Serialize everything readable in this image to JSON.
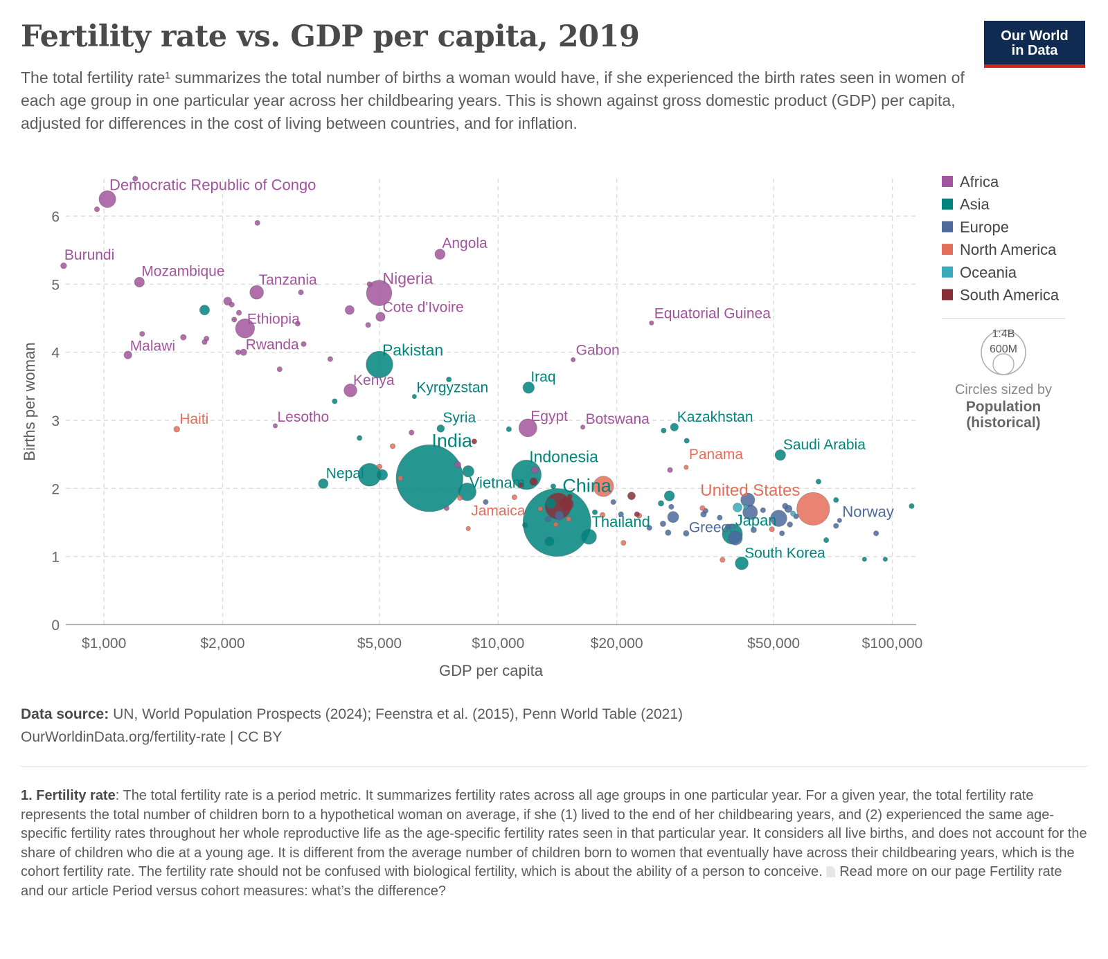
{
  "header": {
    "title": "Fertility rate vs. GDP per capita, 2019",
    "subtitle": "The total fertility rate¹ summarizes the total number of births a woman would have, if she experienced the birth rates seen in women of each age group in one particular year across her childbearing years. This is shown against gross domestic product (GDP) per capita, adjusted for differences in the cost of living between countries, and for inflation.",
    "logo_line1": "Our World",
    "logo_line2": "in Data"
  },
  "colors": {
    "Africa": "#a2559c",
    "Asia": "#00847e",
    "Europe": "#4c6a9c",
    "North America": "#e56e5a",
    "Oceania": "#38aaba",
    "South America": "#883039"
  },
  "chart_data": {
    "type": "scatter",
    "x_scale": "log",
    "xlabel": "GDP per capita",
    "ylabel": "Births per woman",
    "xlim": [
      800,
      115000
    ],
    "ylim": [
      0,
      6.55
    ],
    "x_ticks": [
      1000,
      2000,
      5000,
      10000,
      20000,
      50000,
      100000
    ],
    "x_tick_labels": [
      "$1,000",
      "$2,000",
      "$5,000",
      "$10,000",
      "$20,000",
      "$50,000",
      "$100,000"
    ],
    "y_ticks": [
      0,
      1,
      2,
      3,
      4,
      5,
      6
    ],
    "y_tick_labels": [
      "0",
      "1",
      "2",
      "3",
      "4",
      "5",
      "6"
    ],
    "grid": true,
    "legend_position": "right",
    "size_legend": {
      "values": [
        "1:4B",
        "600M"
      ],
      "caption1": "Circles sized by",
      "caption2": "Population",
      "caption3": "(historical)"
    },
    "series": [
      {
        "name": "Africa",
        "points": [
          {
            "label": "Democratic Republic of Congo",
            "x": 1020,
            "y": 6.25,
            "pop": 87
          },
          {
            "label": "Burundi",
            "x": 790,
            "y": 5.27,
            "pop": 11
          },
          {
            "label": "Mozambique",
            "x": 1230,
            "y": 5.03,
            "pop": 30
          },
          {
            "label": "Tanzania",
            "x": 2440,
            "y": 4.88,
            "pop": 58
          },
          {
            "label": "Nigeria",
            "x": 4990,
            "y": 4.87,
            "pop": 200
          },
          {
            "label": "Angola",
            "x": 7120,
            "y": 5.44,
            "pop": 32
          },
          {
            "label": "Ethiopia",
            "x": 2280,
            "y": 4.35,
            "pop": 112
          },
          {
            "label": "Cote d'Ivoire",
            "x": 5030,
            "y": 4.52,
            "pop": 26
          },
          {
            "label": "Malawi",
            "x": 1150,
            "y": 3.96,
            "pop": 19
          },
          {
            "label": "Rwanda",
            "x": 2260,
            "y": 4.0,
            "pop": 13
          },
          {
            "label": "Kenya",
            "x": 4220,
            "y": 3.44,
            "pop": 52
          },
          {
            "label": "Lesotho",
            "x": 2720,
            "y": 2.92,
            "pop": 2
          },
          {
            "label": "Egypt",
            "x": 11900,
            "y": 2.89,
            "pop": 100
          },
          {
            "label": "Botswana",
            "x": 16400,
            "y": 2.9,
            "pop": 2
          },
          {
            "label": "Gabon",
            "x": 15500,
            "y": 3.89,
            "pop": 2
          },
          {
            "label": "Equatorial Guinea",
            "x": 24500,
            "y": 4.43,
            "pop": 1
          },
          {
            "label": "",
            "x": 1200,
            "y": 6.55,
            "pop": 8
          },
          {
            "label": "",
            "x": 960,
            "y": 6.1,
            "pop": 8
          },
          {
            "label": "",
            "x": 2450,
            "y": 5.9,
            "pop": 8
          },
          {
            "label": "",
            "x": 4720,
            "y": 5.0,
            "pop": 8
          },
          {
            "label": "",
            "x": 2060,
            "y": 4.75,
            "pop": 20
          },
          {
            "label": "",
            "x": 2110,
            "y": 4.7,
            "pop": 8
          },
          {
            "label": "",
            "x": 2200,
            "y": 4.58,
            "pop": 8
          },
          {
            "label": "",
            "x": 2140,
            "y": 4.48,
            "pop": 8
          },
          {
            "label": "",
            "x": 4200,
            "y": 4.62,
            "pop": 25
          },
          {
            "label": "",
            "x": 1250,
            "y": 4.27,
            "pop": 8
          },
          {
            "label": "",
            "x": 1590,
            "y": 4.22,
            "pop": 10
          },
          {
            "label": "",
            "x": 1820,
            "y": 4.2,
            "pop": 8
          },
          {
            "label": "",
            "x": 1800,
            "y": 4.15,
            "pop": 8
          },
          {
            "label": "",
            "x": 3100,
            "y": 4.42,
            "pop": 8
          },
          {
            "label": "",
            "x": 3160,
            "y": 4.88,
            "pop": 8
          },
          {
            "label": "",
            "x": 3210,
            "y": 4.12,
            "pop": 8
          },
          {
            "label": "",
            "x": 4680,
            "y": 4.4,
            "pop": 8
          },
          {
            "label": "",
            "x": 3750,
            "y": 3.9,
            "pop": 8
          },
          {
            "label": "",
            "x": 2790,
            "y": 3.75,
            "pop": 8
          },
          {
            "label": "",
            "x": 2190,
            "y": 4.0,
            "pop": 8
          },
          {
            "label": "",
            "x": 6030,
            "y": 2.82,
            "pop": 8
          },
          {
            "label": "",
            "x": 7900,
            "y": 2.35,
            "pop": 12
          },
          {
            "label": "",
            "x": 12400,
            "y": 2.27,
            "pop": 15
          },
          {
            "label": "",
            "x": 7400,
            "y": 1.71,
            "pop": 8
          },
          {
            "label": "",
            "x": 27300,
            "y": 2.27,
            "pop": 8
          }
        ]
      },
      {
        "name": "Asia",
        "points": [
          {
            "label": "India",
            "x": 6700,
            "y": 2.15,
            "pop": 1380
          },
          {
            "label": "China",
            "x": 14100,
            "y": 1.5,
            "pop": 1420
          },
          {
            "label": "Indonesia",
            "x": 11800,
            "y": 2.2,
            "pop": 270
          },
          {
            "label": "Pakistan",
            "x": 5000,
            "y": 3.82,
            "pop": 220
          },
          {
            "label": "Kyrgyzstan",
            "x": 6130,
            "y": 3.35,
            "pop": 6
          },
          {
            "label": "Iraq",
            "x": 11950,
            "y": 3.48,
            "pop": 40
          },
          {
            "label": "Syria",
            "x": 7150,
            "y": 2.88,
            "pop": 17
          },
          {
            "label": "Nepal",
            "x": 3600,
            "y": 2.07,
            "pop": 29
          },
          {
            "label": "Vietnam",
            "x": 8350,
            "y": 1.95,
            "pop": 97
          },
          {
            "label": "Thailand",
            "x": 17000,
            "y": 1.29,
            "pop": 70
          },
          {
            "label": "Japan",
            "x": 39300,
            "y": 1.33,
            "pop": 126
          },
          {
            "label": "South Korea",
            "x": 41500,
            "y": 0.9,
            "pop": 52
          },
          {
            "label": "Kazakhstan",
            "x": 28000,
            "y": 2.9,
            "pop": 19
          },
          {
            "label": "Saudi Arabia",
            "x": 52000,
            "y": 2.49,
            "pop": 35
          },
          {
            "label": "",
            "x": 1800,
            "y": 4.62,
            "pop": 30
          },
          {
            "label": "",
            "x": 3850,
            "y": 3.28,
            "pop": 8
          },
          {
            "label": "",
            "x": 4450,
            "y": 2.74,
            "pop": 8
          },
          {
            "label": "",
            "x": 4720,
            "y": 2.2,
            "pop": 160
          },
          {
            "label": "",
            "x": 5080,
            "y": 2.2,
            "pop": 35
          },
          {
            "label": "",
            "x": 7500,
            "y": 3.6,
            "pop": 8
          },
          {
            "label": "",
            "x": 8400,
            "y": 2.25,
            "pop": 40
          },
          {
            "label": "",
            "x": 10650,
            "y": 2.87,
            "pop": 8
          },
          {
            "label": "",
            "x": 13600,
            "y": 1.78,
            "pop": 30
          },
          {
            "label": "",
            "x": 13800,
            "y": 2.03,
            "pop": 8
          },
          {
            "label": "",
            "x": 11700,
            "y": 1.46,
            "pop": 8
          },
          {
            "label": "",
            "x": 13500,
            "y": 1.22,
            "pop": 25
          },
          {
            "label": "",
            "x": 17600,
            "y": 1.65,
            "pop": 8
          },
          {
            "label": "",
            "x": 25900,
            "y": 1.78,
            "pop": 10
          },
          {
            "label": "",
            "x": 26300,
            "y": 2.85,
            "pop": 8
          },
          {
            "label": "",
            "x": 27200,
            "y": 1.89,
            "pop": 32
          },
          {
            "label": "",
            "x": 30100,
            "y": 2.7,
            "pop": 8
          },
          {
            "label": "",
            "x": 65000,
            "y": 2.1,
            "pop": 8
          },
          {
            "label": "",
            "x": 72000,
            "y": 1.83,
            "pop": 8
          },
          {
            "label": "",
            "x": 68000,
            "y": 1.24,
            "pop": 8
          },
          {
            "label": "",
            "x": 85000,
            "y": 0.96,
            "pop": 6
          },
          {
            "label": "",
            "x": 96000,
            "y": 0.96,
            "pop": 6
          },
          {
            "label": "",
            "x": 112000,
            "y": 1.74,
            "pop": 8
          }
        ]
      },
      {
        "name": "Europe",
        "points": [
          {
            "label": "Greece",
            "x": 30000,
            "y": 1.34,
            "pop": 10
          },
          {
            "label": "Norway",
            "x": 73500,
            "y": 1.53,
            "pop": 5
          },
          {
            "label": "",
            "x": 9300,
            "y": 1.8,
            "pop": 8
          },
          {
            "label": "",
            "x": 13400,
            "y": 1.55,
            "pop": 10
          },
          {
            "label": "",
            "x": 14300,
            "y": 1.6,
            "pop": 25
          },
          {
            "label": "",
            "x": 19600,
            "y": 1.8,
            "pop": 8
          },
          {
            "label": "",
            "x": 20500,
            "y": 1.62,
            "pop": 8
          },
          {
            "label": "",
            "x": 24200,
            "y": 1.42,
            "pop": 8
          },
          {
            "label": "",
            "x": 26200,
            "y": 1.48,
            "pop": 10
          },
          {
            "label": "",
            "x": 27000,
            "y": 1.35,
            "pop": 10
          },
          {
            "label": "",
            "x": 27500,
            "y": 1.73,
            "pop": 8
          },
          {
            "label": "",
            "x": 27800,
            "y": 1.58,
            "pop": 38
          },
          {
            "label": "",
            "x": 33200,
            "y": 1.62,
            "pop": 10
          },
          {
            "label": "",
            "x": 33600,
            "y": 1.67,
            "pop": 8
          },
          {
            "label": "",
            "x": 36500,
            "y": 1.57,
            "pop": 8
          },
          {
            "label": "",
            "x": 38300,
            "y": 1.44,
            "pop": 8
          },
          {
            "label": "",
            "x": 40000,
            "y": 1.27,
            "pop": 60
          },
          {
            "label": "",
            "x": 43000,
            "y": 1.83,
            "pop": 60
          },
          {
            "label": "",
            "x": 43600,
            "y": 1.65,
            "pop": 67
          },
          {
            "label": "",
            "x": 44500,
            "y": 1.39,
            "pop": 10
          },
          {
            "label": "",
            "x": 47000,
            "y": 1.68,
            "pop": 8
          },
          {
            "label": "",
            "x": 51500,
            "y": 1.56,
            "pop": 83
          },
          {
            "label": "",
            "x": 53500,
            "y": 1.74,
            "pop": 10
          },
          {
            "label": "",
            "x": 54500,
            "y": 1.7,
            "pop": 17
          },
          {
            "label": "",
            "x": 57000,
            "y": 1.59,
            "pop": 8
          },
          {
            "label": "",
            "x": 55000,
            "y": 1.47,
            "pop": 9
          },
          {
            "label": "",
            "x": 52500,
            "y": 1.34,
            "pop": 8
          },
          {
            "label": "",
            "x": 72000,
            "y": 1.45,
            "pop": 8
          },
          {
            "label": "",
            "x": 91000,
            "y": 1.34,
            "pop": 8
          }
        ]
      },
      {
        "name": "North America",
        "points": [
          {
            "label": "United States",
            "x": 63000,
            "y": 1.7,
            "pop": 330
          },
          {
            "label": "Haiti",
            "x": 1530,
            "y": 2.87,
            "pop": 11
          },
          {
            "label": "Jamaica",
            "x": 8400,
            "y": 1.41,
            "pop": 3
          },
          {
            "label": "Panama",
            "x": 30000,
            "y": 2.31,
            "pop": 4
          },
          {
            "label": "",
            "x": 5000,
            "y": 2.32,
            "pop": 8
          },
          {
            "label": "",
            "x": 5400,
            "y": 2.62,
            "pop": 8
          },
          {
            "label": "",
            "x": 5650,
            "y": 2.15,
            "pop": 8
          },
          {
            "label": "",
            "x": 8000,
            "y": 1.86,
            "pop": 8
          },
          {
            "label": "",
            "x": 11000,
            "y": 1.87,
            "pop": 8
          },
          {
            "label": "",
            "x": 12800,
            "y": 1.7,
            "pop": 8
          },
          {
            "label": "",
            "x": 14000,
            "y": 1.47,
            "pop": 8
          },
          {
            "label": "",
            "x": 15100,
            "y": 1.55,
            "pop": 8
          },
          {
            "label": "",
            "x": 18400,
            "y": 1.61,
            "pop": 8
          },
          {
            "label": "",
            "x": 18500,
            "y": 2.03,
            "pop": 128
          },
          {
            "label": "",
            "x": 20800,
            "y": 1.2,
            "pop": 8
          },
          {
            "label": "",
            "x": 22800,
            "y": 1.6,
            "pop": 8
          },
          {
            "label": "",
            "x": 33000,
            "y": 1.71,
            "pop": 8
          },
          {
            "label": "",
            "x": 37100,
            "y": 0.95,
            "pop": 8
          },
          {
            "label": "",
            "x": 49500,
            "y": 1.4,
            "pop": 8
          }
        ]
      },
      {
        "name": "Oceania",
        "points": [
          {
            "label": "",
            "x": 40500,
            "y": 1.72,
            "pop": 25
          },
          {
            "label": "",
            "x": 42500,
            "y": 1.73,
            "pop": 5
          },
          {
            "label": "",
            "x": 56000,
            "y": 1.63,
            "pop": 8
          }
        ]
      },
      {
        "name": "South America",
        "points": [
          {
            "label": "",
            "x": 8700,
            "y": 2.69,
            "pop": 8
          },
          {
            "label": "",
            "x": 11400,
            "y": 2.05,
            "pop": 8
          },
          {
            "label": "",
            "x": 12300,
            "y": 2.1,
            "pop": 18
          },
          {
            "label": "",
            "x": 14200,
            "y": 1.74,
            "pop": 211
          },
          {
            "label": "",
            "x": 14900,
            "y": 1.77,
            "pop": 60
          },
          {
            "label": "",
            "x": 15200,
            "y": 1.88,
            "pop": 8
          },
          {
            "label": "",
            "x": 21800,
            "y": 1.89,
            "pop": 18
          },
          {
            "label": "",
            "x": 22500,
            "y": 1.62,
            "pop": 8
          }
        ]
      }
    ]
  },
  "source": {
    "label": "Data source:",
    "text": "UN, World Population Prospects (2024); Feenstra et al. (2015), Penn World Table (2021)",
    "link": "OurWorldinData.org/fertility-rate | CC BY"
  },
  "footnote": {
    "label": "1. Fertility rate",
    "text": ": The total fertility rate is a period metric. It summarizes fertility rates across all age groups in one particular year. For a given year, the total fertility rate represents the total number of children born to a hypothetical woman on average, if she (1) lived to the end of her childbearing years, and (2) experienced the same age-specific fertility rates throughout her whole reproductive life as the age-specific fertility rates seen in that particular year. It considers all live births, and does not account for the share of children who die at a young age. It is different from the average number of children born to women that eventually have across their childbearing years, which is the cohort fertility rate. The fertility rate should not be confused with biological fertility, which is about the ability of a person to conceive.",
    "read_more": "Read more on our page Fertility rate and our article Period versus cohort measures: what’s the difference?"
  }
}
